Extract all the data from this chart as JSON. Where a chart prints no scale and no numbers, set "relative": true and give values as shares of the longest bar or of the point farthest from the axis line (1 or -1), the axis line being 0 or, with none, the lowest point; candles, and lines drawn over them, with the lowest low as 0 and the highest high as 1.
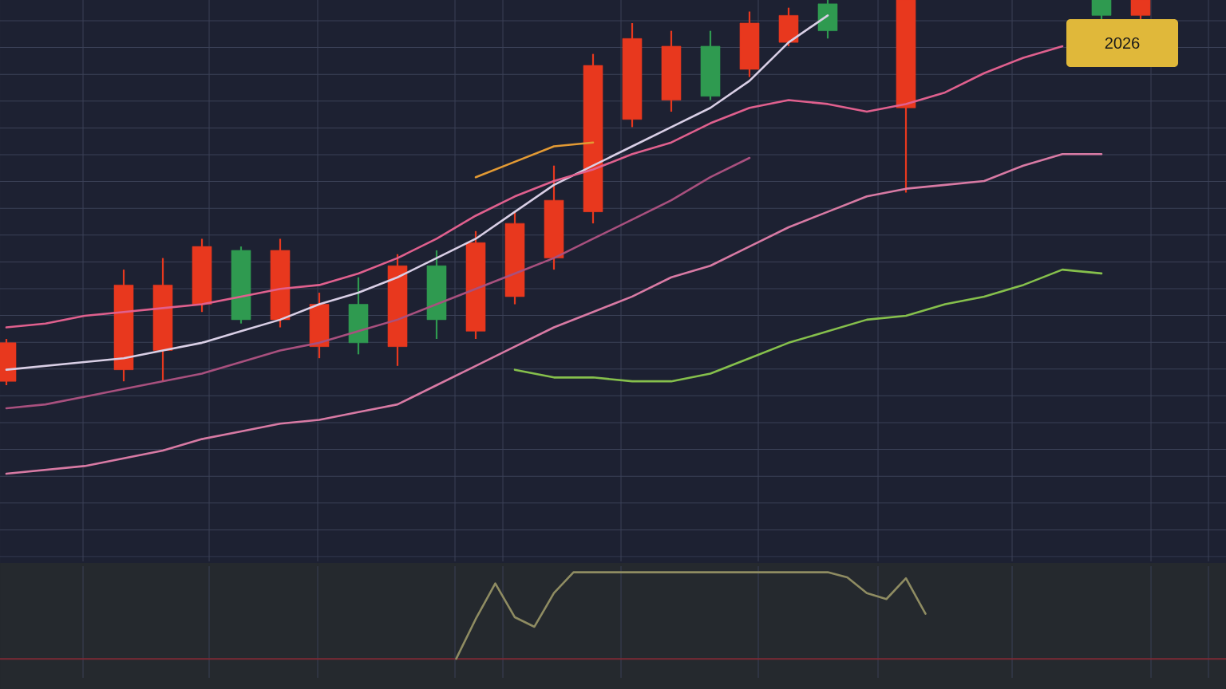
{
  "chart_data": [
    {
      "type": "candlestick",
      "relative": true,
      "grid": true,
      "categories": [
        null,
        null,
        null,
        null,
        null,
        null,
        null,
        null,
        null,
        null,
        null,
        null,
        null,
        null,
        null,
        null,
        null,
        null,
        null,
        null,
        null,
        null,
        null,
        null,
        null,
        null,
        null,
        null,
        null,
        null
      ],
      "ohlc": [
        [
          0.11,
          0.12,
          0.0,
          0.01
        ],
        null,
        null,
        [
          0.26,
          0.3,
          0.01,
          0.04
        ],
        [
          0.26,
          0.33,
          0.01,
          0.09
        ],
        [
          0.36,
          0.38,
          0.19,
          0.21
        ],
        [
          0.17,
          0.36,
          0.16,
          0.35
        ],
        [
          0.35,
          0.38,
          0.15,
          0.17
        ],
        [
          0.21,
          0.24,
          0.07,
          0.1
        ],
        [
          0.11,
          0.28,
          0.08,
          0.21
        ],
        [
          0.31,
          0.34,
          0.05,
          0.1
        ],
        [
          0.17,
          0.35,
          0.12,
          0.31
        ],
        [
          0.37,
          0.4,
          0.12,
          0.14
        ],
        [
          0.42,
          0.45,
          0.21,
          0.23
        ],
        [
          0.48,
          0.57,
          0.3,
          0.33
        ],
        [
          0.83,
          0.86,
          0.42,
          0.45
        ],
        [
          0.9,
          0.94,
          0.67,
          0.69
        ],
        [
          0.88,
          0.92,
          0.71,
          0.74
        ],
        [
          0.75,
          0.92,
          0.74,
          0.88
        ],
        [
          0.94,
          0.97,
          0.8,
          0.82
        ],
        [
          0.96,
          0.98,
          0.88,
          0.89
        ],
        [
          0.92,
          1.0,
          0.9,
          0.99
        ],
        null,
        [
          1.0,
          1.0,
          0.5,
          0.72
        ],
        null,
        null,
        null,
        null,
        [
          0.96,
          1.0,
          0.95,
          1.0
        ],
        [
          1.0,
          1.0,
          0.95,
          0.96
        ]
      ],
      "colors": [
        "#e8381e",
        null,
        null,
        "#e8381e",
        "#e8381e",
        "#e8381e",
        "#2f9a50",
        "#e8381e",
        "#e8381e",
        "#2f9a50",
        "#e8381e",
        "#2f9a50",
        "#e8381e",
        "#e8381e",
        "#e8381e",
        "#e8381e",
        "#e8381e",
        "#e8381e",
        "#2f9a50",
        "#e8381e",
        "#e8381e",
        "#2f9a50",
        null,
        "#e8381e",
        null,
        null,
        null,
        null,
        "#2f9a50",
        "#e8381e"
      ],
      "series": [
        {
          "type": "line",
          "color": "#d9cfe6",
          "values": [
            0.04,
            0.05,
            0.06,
            0.07,
            0.09,
            0.11,
            0.14,
            0.17,
            0.21,
            0.24,
            0.28,
            0.33,
            0.38,
            0.45,
            0.52,
            0.57,
            0.62,
            0.67,
            0.72,
            0.79,
            0.89,
            0.96,
            null,
            null,
            null,
            null,
            null,
            null,
            null,
            null
          ]
        },
        {
          "type": "line",
          "color": "#e0608e",
          "values": [
            0.15,
            0.16,
            0.18,
            0.19,
            0.2,
            0.21,
            0.23,
            0.25,
            0.26,
            0.29,
            0.33,
            0.38,
            0.44,
            0.49,
            0.53,
            0.56,
            0.6,
            0.63,
            0.68,
            0.72,
            0.74,
            0.73,
            0.71,
            0.73,
            0.76,
            0.81,
            0.85,
            0.88,
            null,
            null
          ]
        },
        {
          "type": "line",
          "color": "#a8507e",
          "values": [
            -0.06,
            -0.05,
            -0.03,
            -0.01,
            0.01,
            0.03,
            0.06,
            0.09,
            0.11,
            0.14,
            0.17,
            0.21,
            0.25,
            0.29,
            0.33,
            0.38,
            0.43,
            0.48,
            0.54,
            0.59,
            null,
            null,
            null,
            null,
            null,
            null,
            null,
            null,
            null,
            null
          ]
        },
        {
          "type": "line",
          "color": "#d87aa4",
          "values": [
            -0.23,
            -0.22,
            -0.21,
            -0.19,
            -0.17,
            -0.14,
            -0.12,
            -0.1,
            -0.09,
            -0.07,
            -0.05,
            0.0,
            0.05,
            0.1,
            0.15,
            0.19,
            0.23,
            0.28,
            0.31,
            0.36,
            0.41,
            0.45,
            0.49,
            0.51,
            0.52,
            0.53,
            0.57,
            0.6,
            0.6,
            null
          ]
        },
        {
          "type": "line",
          "color": "#86c04c",
          "values": [
            null,
            null,
            null,
            null,
            null,
            null,
            null,
            null,
            null,
            null,
            null,
            null,
            null,
            0.04,
            0.02,
            0.02,
            0.01,
            0.01,
            0.03,
            0.07,
            0.11,
            0.14,
            0.17,
            0.18,
            0.21,
            0.23,
            0.26,
            0.3,
            0.29,
            null
          ]
        },
        {
          "type": "line",
          "color": "#e39a34",
          "values": [
            null,
            null,
            null,
            null,
            null,
            null,
            null,
            null,
            null,
            null,
            null,
            null,
            0.54,
            0.58,
            0.62,
            0.63,
            null,
            null,
            null,
            null,
            null,
            null,
            null,
            null,
            null,
            null,
            null,
            null,
            null,
            null
          ]
        }
      ],
      "annotations": [
        "2026"
      ]
    },
    {
      "type": "line",
      "relative": true,
      "grid": "x",
      "color": "#8f8c62",
      "categories": [
        null,
        null,
        null,
        null,
        null,
        null,
        null,
        null,
        null,
        null,
        null,
        null,
        null,
        null,
        null,
        null,
        null,
        null,
        null,
        null,
        null,
        null,
        null,
        null,
        null,
        null,
        null,
        null,
        null,
        null,
        null,
        null,
        null,
        null,
        null,
        null,
        null,
        null,
        null,
        null,
        null,
        null,
        null,
        null,
        null,
        null,
        null,
        null,
        null,
        null,
        null,
        null,
        null,
        null,
        null,
        null,
        null,
        null,
        null,
        null
      ],
      "values": [
        null,
        null,
        null,
        null,
        null,
        null,
        null,
        null,
        null,
        null,
        null,
        null,
        null,
        null,
        null,
        null,
        null,
        null,
        null,
        null,
        null,
        null,
        null,
        0.0,
        0.46,
        0.87,
        0.48,
        0.37,
        0.76,
        1.0,
        1.0,
        1.0,
        1.0,
        1.0,
        1.0,
        1.0,
        1.0,
        1.0,
        1.0,
        1.0,
        1.0,
        1.0,
        1.0,
        0.94,
        0.76,
        0.69,
        0.93,
        0.52,
        null,
        null,
        null,
        null,
        null,
        null,
        null,
        null,
        null,
        null,
        null,
        null
      ],
      "ref_lines": [
        {
          "axis": "y",
          "value": 0,
          "color": "#7c2a35"
        }
      ]
    }
  ]
}
